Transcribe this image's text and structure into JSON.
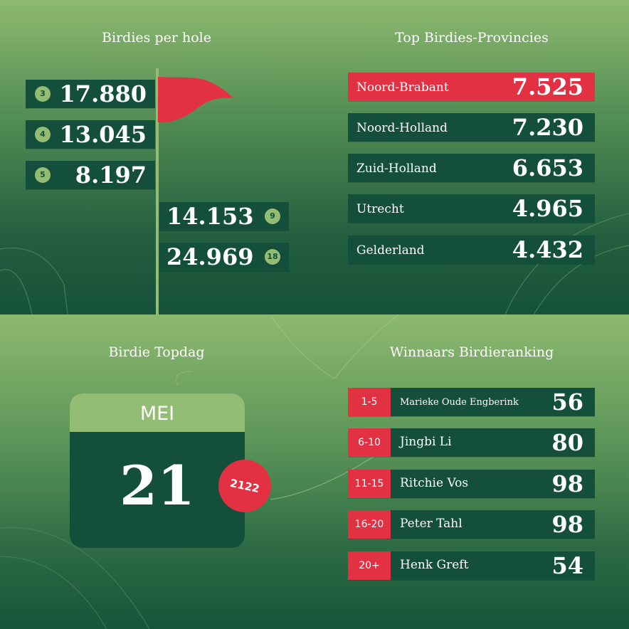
{
  "colors": {
    "dark_green": "#134f3a",
    "light_green": "#93bc74",
    "red": "#e23142",
    "text": "#ffffff"
  },
  "birdies_per_hole": {
    "title": "Birdies per hole",
    "icon": "golf-flag-icon",
    "holes": [
      {
        "hole": "3",
        "value": "17.880"
      },
      {
        "hole": "4",
        "value": "13.045"
      },
      {
        "hole": "5",
        "value": "8.197"
      },
      {
        "hole": "9",
        "value": "14.153"
      },
      {
        "hole": "18",
        "value": "24.969"
      }
    ]
  },
  "top_provinces": {
    "title": "Top Birdies-Provincies",
    "items": [
      {
        "name": "Noord-Brabant",
        "value": "7.525",
        "highlight": true
      },
      {
        "name": "Noord-Holland",
        "value": "7.230"
      },
      {
        "name": "Zuid-Holland",
        "value": "6.653"
      },
      {
        "name": "Utrecht",
        "value": "4.965"
      },
      {
        "name": "Gelderland",
        "value": "4.432"
      }
    ]
  },
  "topdag": {
    "title": "Birdie Topdag",
    "month": "MEI",
    "day": "21",
    "count": "2122"
  },
  "ranking": {
    "title": "Winnaars Birdieranking",
    "items": [
      {
        "range": "1-5",
        "name": "Marieke Oude Engberink",
        "value": "56"
      },
      {
        "range": "6-10",
        "name": "Jingbi Li",
        "value": "80"
      },
      {
        "range": "11-15",
        "name": "Ritchie Vos",
        "value": "98"
      },
      {
        "range": "16-20",
        "name": "Peter Tahl",
        "value": "98"
      },
      {
        "range": "20+",
        "name": "Henk Greft",
        "value": "54"
      }
    ]
  }
}
